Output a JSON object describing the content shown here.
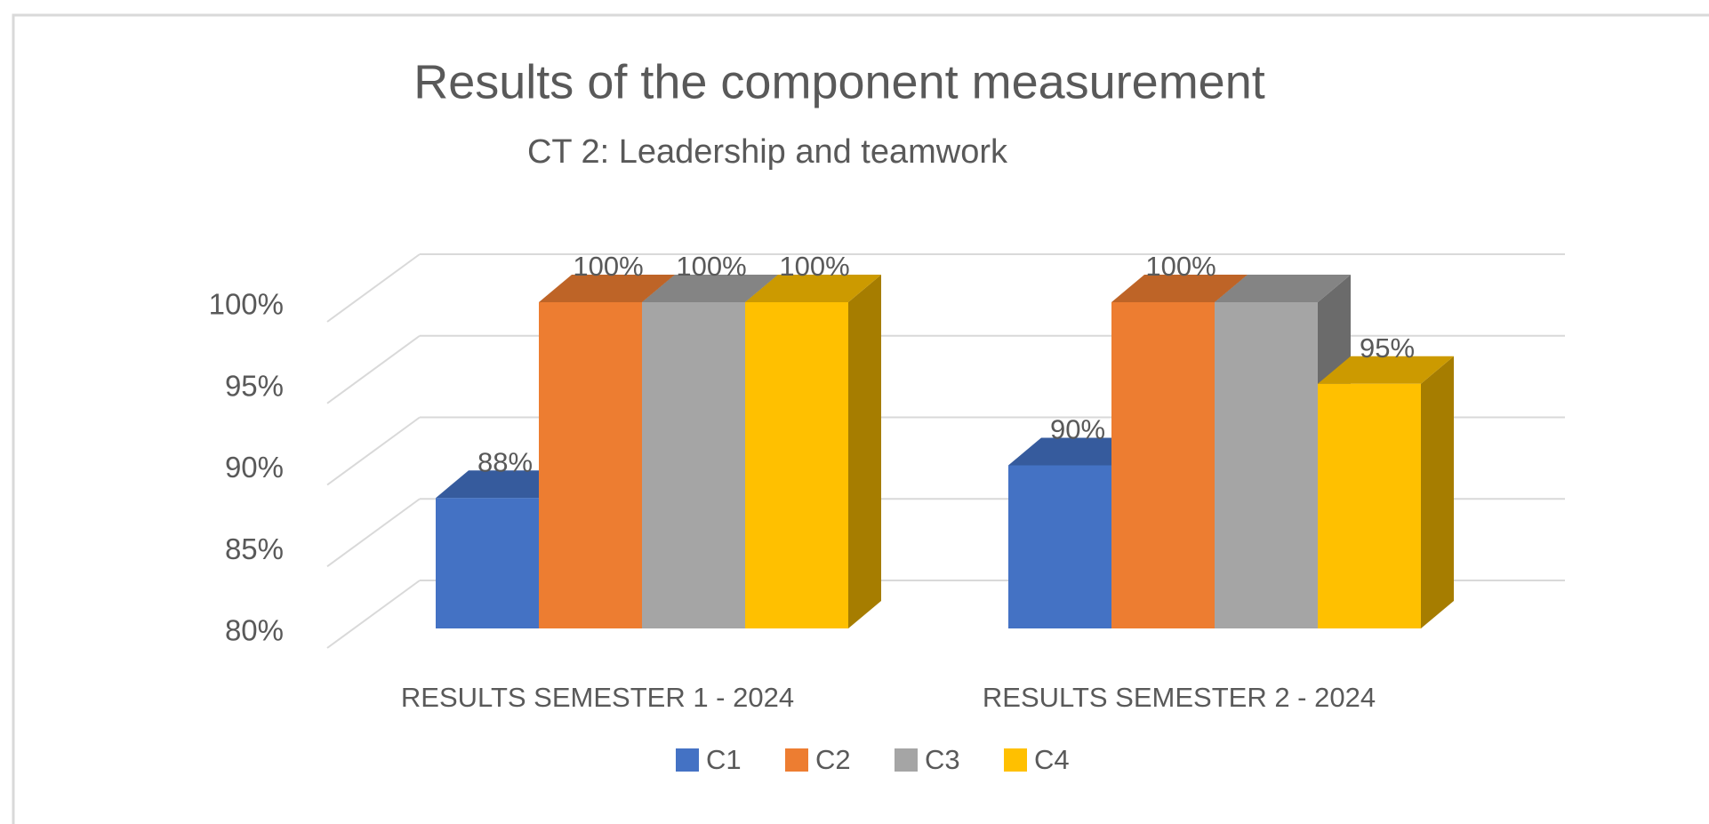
{
  "chart_data": {
    "type": "bar3d",
    "title": "Results of the component measurement",
    "subtitle": "CT 2: Leadership and teamwork",
    "categories": [
      "RESULTS SEMESTER 1 - 2024",
      "RESULTS SEMESTER 2 - 2024"
    ],
    "series": [
      {
        "name": "C1",
        "color": "#4472c4",
        "values": [
          88,
          90
        ],
        "value_labels": [
          "88%",
          "90%"
        ]
      },
      {
        "name": "C2",
        "color": "#ed7d31",
        "values": [
          100,
          100
        ],
        "value_labels": [
          "100%",
          "100%"
        ]
      },
      {
        "name": "C3",
        "color": "#a5a5a5",
        "values": [
          100,
          100
        ],
        "value_labels": [
          "100%",
          null
        ]
      },
      {
        "name": "C4",
        "color": "#ffc000",
        "values": [
          100,
          95
        ],
        "value_labels": [
          "100%",
          "95%"
        ]
      }
    ],
    "ylim": [
      80,
      100
    ],
    "yticks": [
      {
        "value": 80,
        "label": "80%"
      },
      {
        "value": 85,
        "label": "85%"
      },
      {
        "value": 90,
        "label": "90%"
      },
      {
        "value": 95,
        "label": "95%"
      },
      {
        "value": 100,
        "label": "100%"
      }
    ],
    "grid": true
  }
}
